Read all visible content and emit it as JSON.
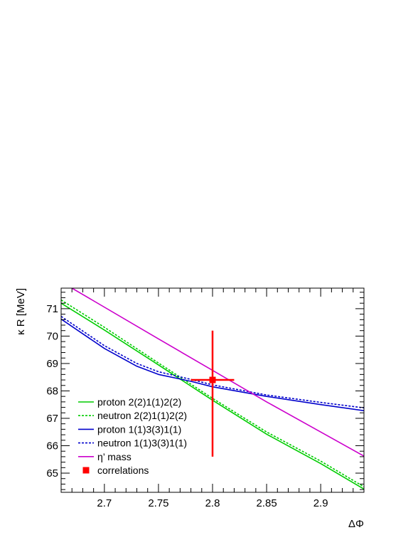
{
  "chart_data": {
    "type": "line",
    "xlabel": "ΔΦ",
    "ylabel": "κ R [MeV]",
    "xlim": [
      2.66,
      2.94
    ],
    "ylim": [
      64.3,
      71.75
    ],
    "x_ticks": [
      2.7,
      2.75,
      2.8,
      2.85,
      2.9
    ],
    "x_tick_labels": [
      "2.7",
      "2.75",
      "2.8",
      "2.85",
      "2.9"
    ],
    "y_ticks": [
      65,
      66,
      67,
      68,
      69,
      70,
      71
    ],
    "y_tick_labels": [
      "65",
      "66",
      "67",
      "68",
      "69",
      "70",
      "71"
    ],
    "grid": false,
    "legend_position": "bottom-left",
    "series": [
      {
        "name": "proton 2(2)1(1)2(2)",
        "color": "#00cc00",
        "style": "solid",
        "points": [
          [
            2.66,
            71.2
          ],
          [
            2.7,
            70.22
          ],
          [
            2.75,
            68.95
          ],
          [
            2.8,
            67.66
          ],
          [
            2.85,
            66.42
          ],
          [
            2.9,
            65.35
          ],
          [
            2.94,
            64.42
          ]
        ]
      },
      {
        "name": "neutron 2(2)1(1)2(2)",
        "color": "#00cc00",
        "style": "dashed",
        "points": [
          [
            2.66,
            71.32
          ],
          [
            2.7,
            70.32
          ],
          [
            2.75,
            69.02
          ],
          [
            2.8,
            67.73
          ],
          [
            2.85,
            66.5
          ],
          [
            2.9,
            65.44
          ],
          [
            2.94,
            64.5
          ]
        ]
      },
      {
        "name": "proton 1(1)3(3)1(1)",
        "color": "#0000cc",
        "style": "solid",
        "points": [
          [
            2.66,
            70.62
          ],
          [
            2.7,
            69.55
          ],
          [
            2.73,
            68.9
          ],
          [
            2.75,
            68.6
          ],
          [
            2.78,
            68.35
          ],
          [
            2.8,
            68.15
          ],
          [
            2.85,
            67.8
          ],
          [
            2.9,
            67.5
          ],
          [
            2.94,
            67.28
          ]
        ]
      },
      {
        "name": "neutron 1(1)3(3)1(1)",
        "color": "#0000cc",
        "style": "dashed",
        "points": [
          [
            2.66,
            70.72
          ],
          [
            2.7,
            69.65
          ],
          [
            2.73,
            69.0
          ],
          [
            2.75,
            68.7
          ],
          [
            2.78,
            68.42
          ],
          [
            2.8,
            68.22
          ],
          [
            2.85,
            67.85
          ],
          [
            2.9,
            67.58
          ],
          [
            2.94,
            67.38
          ]
        ]
      },
      {
        "name": "η’ mass",
        "color": "#cc00cc",
        "style": "solid",
        "points": [
          [
            2.67,
            71.75
          ],
          [
            2.75,
            69.9
          ],
          [
            2.8,
            68.75
          ],
          [
            2.85,
            67.6
          ],
          [
            2.9,
            66.5
          ],
          [
            2.94,
            65.62
          ]
        ]
      }
    ],
    "error_points": [
      {
        "name": "correlations",
        "color": "#ff0000",
        "x": 2.8,
        "y": 68.4,
        "x_err": 0.02,
        "y_err_low": 2.8,
        "y_err_high": 1.8
      }
    ]
  }
}
